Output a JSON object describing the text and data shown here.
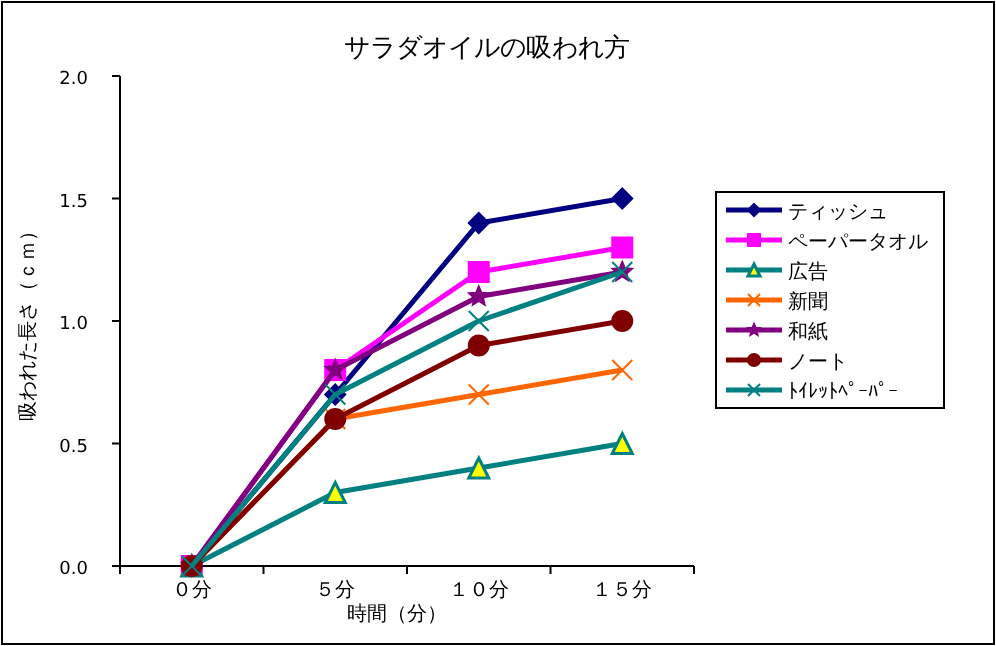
{
  "chart_data": {
    "type": "line",
    "title": "サラダオイルの吸われ方",
    "xlabel": "時間（分）",
    "ylabel": "吸われた長さ（ｃｍ）",
    "categories": [
      "０分",
      "５分",
      "１０分",
      "１５分"
    ],
    "ylim": [
      0,
      2
    ],
    "yticks": [
      {
        "value": 0,
        "label": "0.0"
      },
      {
        "value": 0.5,
        "label": "0.5"
      },
      {
        "value": 1,
        "label": "1.0"
      },
      {
        "value": 1.5,
        "label": "1.5"
      },
      {
        "value": 2,
        "label": "2.0"
      }
    ],
    "grid": false,
    "legend": "right",
    "series": [
      {
        "name": "ティッシュ",
        "color": "#000080",
        "marker": "diamond",
        "values": [
          0,
          0.7,
          1.4,
          1.5
        ]
      },
      {
        "name": "ペーパータオル",
        "color": "#ff00ff",
        "marker": "square",
        "values": [
          0,
          0.8,
          1.2,
          1.3
        ]
      },
      {
        "name": "広告",
        "color": "#008080",
        "marker": "triangle",
        "values": [
          0,
          0.3,
          0.4,
          0.5
        ]
      },
      {
        "name": "新聞",
        "color": "#ff6600",
        "marker": "cross",
        "values": [
          0,
          0.6,
          0.7,
          0.8
        ]
      },
      {
        "name": "和紙",
        "color": "#800080",
        "marker": "star",
        "values": [
          0,
          0.8,
          1.1,
          1.2
        ]
      },
      {
        "name": "ノート",
        "color": "#800000",
        "marker": "circle",
        "values": [
          0,
          0.6,
          0.9,
          1.0
        ]
      },
      {
        "name": "ﾄｲﾚｯﾄﾍﾟｰﾊﾟｰ",
        "color": "#008080",
        "marker": "cross",
        "values": [
          0,
          0.7,
          1.0,
          1.2
        ]
      }
    ]
  }
}
